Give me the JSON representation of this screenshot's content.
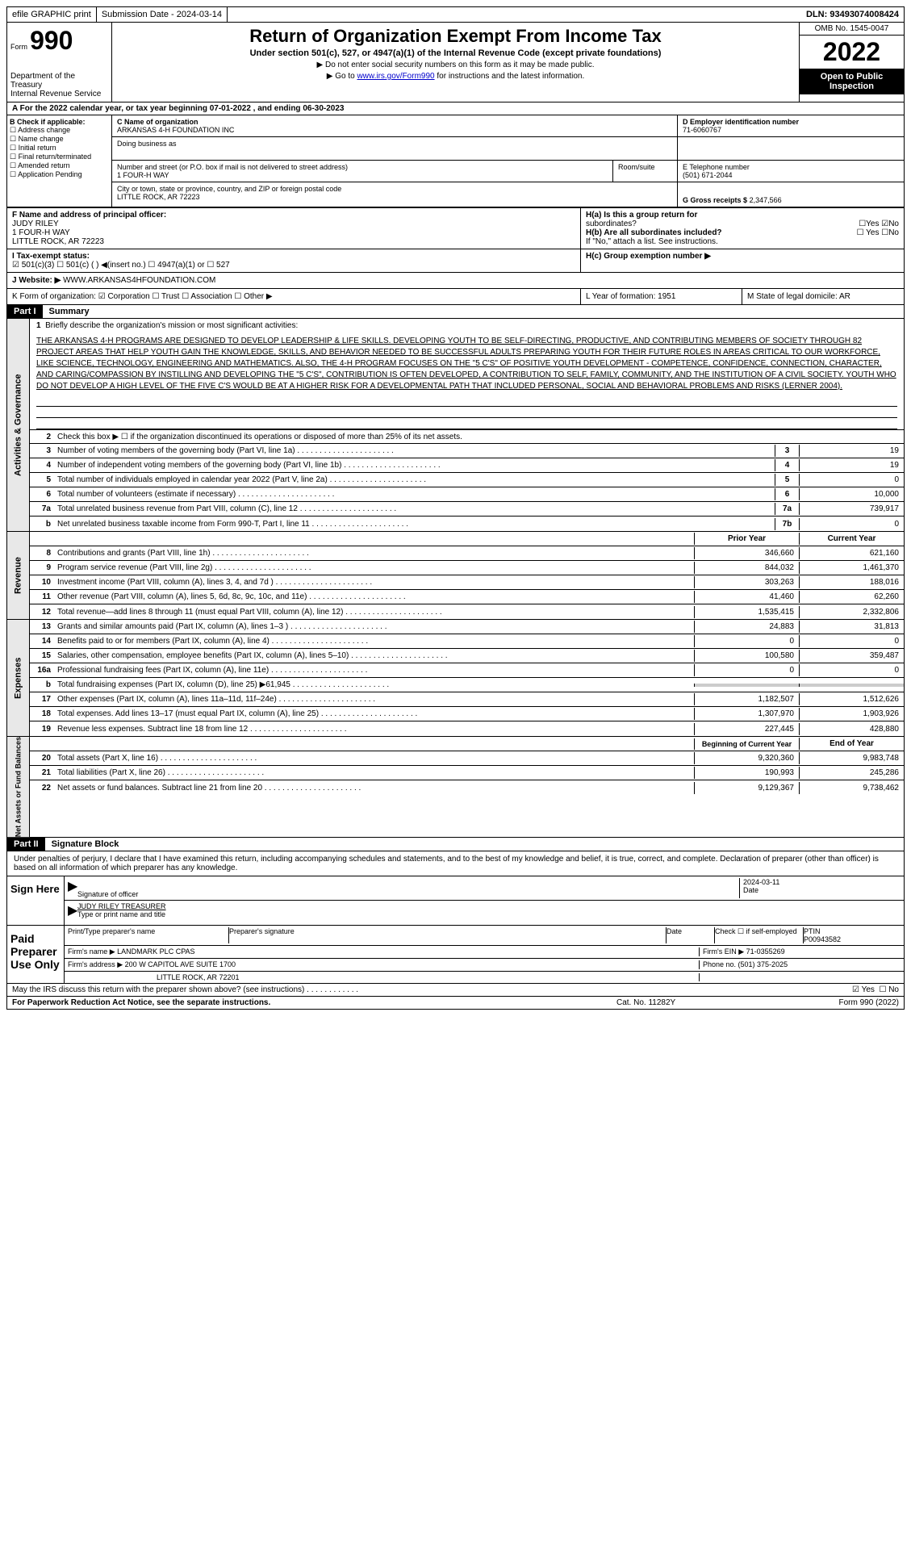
{
  "topbar": {
    "efile": "efile GRAPHIC print",
    "submission": "Submission Date - 2024-03-14",
    "dln": "DLN: 93493074008424"
  },
  "header": {
    "form": "Form",
    "num": "990",
    "dept": "Department of the Treasury",
    "irs": "Internal Revenue Service",
    "title": "Return of Organization Exempt From Income Tax",
    "subtitle": "Under section 501(c), 527, or 4947(a)(1) of the Internal Revenue Code (except private foundations)",
    "instr1": "▶ Do not enter social security numbers on this form as it may be made public.",
    "instr2_pre": "▶ Go to ",
    "instr2_link": "www.irs.gov/Form990",
    "instr2_post": " for instructions and the latest information.",
    "omb": "OMB No. 1545-0047",
    "year": "2022",
    "open": "Open to Public Inspection"
  },
  "rowA": "A For the 2022 calendar year, or tax year beginning 07-01-2022   , and ending 06-30-2023",
  "colB": {
    "header": "B Check if applicable:",
    "items": [
      "☐ Address change",
      "☐ Name change",
      "☐ Initial return",
      "☐ Final return/terminated",
      "☐ Amended return",
      "☐ Application Pending"
    ]
  },
  "boxC": {
    "label": "C Name of organization",
    "name": "ARKANSAS 4-H FOUNDATION INC",
    "dba_label": "Doing business as",
    "street_label": "Number and street (or P.O. box if mail is not delivered to street address)",
    "street": "1 FOUR-H WAY",
    "room_label": "Room/suite",
    "city_label": "City or town, state or province, country, and ZIP or foreign postal code",
    "city": "LITTLE ROCK, AR  72223"
  },
  "boxD": {
    "label": "D Employer identification number",
    "val": "71-6060767"
  },
  "boxE": {
    "label": "E Telephone number",
    "val": "(501) 671-2044"
  },
  "boxG": {
    "label": "G Gross receipts $",
    "val": "2,347,566"
  },
  "boxF": {
    "label": "F  Name and address of principal officer:",
    "name": "JUDY RILEY",
    "addr1": "1 FOUR-H WAY",
    "addr2": "LITTLE ROCK, AR  72223"
  },
  "boxH": {
    "a_label": "H(a)  Is this a group return for",
    "a_sub": "subordinates?",
    "a_yes": "☐Yes",
    "a_no": "☑No",
    "b_label": "H(b)  Are all subordinates included?",
    "b_yes": "☐ Yes",
    "b_no": "☐No",
    "b_note": "If \"No,\" attach a list. See instructions.",
    "c_label": "H(c)  Group exemption number ▶"
  },
  "rowI": {
    "label": "I   Tax-exempt status:",
    "opts": "☑ 501(c)(3)    ☐  501(c) (  ) ◀(insert no.)    ☐  4947(a)(1) or   ☐  527"
  },
  "rowJ": {
    "label": "J  Website: ▶",
    "val": " WWW.ARKANSAS4HFOUNDATION.COM"
  },
  "rowK": {
    "label": "K Form of organization:  ☑ Corporation  ☐ Trust  ☐ Association  ☐ Other ▶",
    "L": "L Year of formation: 1951",
    "M": "M State of legal domicile: AR"
  },
  "part1": {
    "hdr": "Part I",
    "title": "Summary"
  },
  "summary": {
    "line1_label": "Briefly describe the organization's mission or most significant activities:",
    "mission": "THE ARKANSAS 4-H PROGRAMS ARE DESIGNED TO DEVELOP LEADERSHIP & LIFE SKILLS. DEVELOPING YOUTH TO BE SELF-DIRECTING, PRODUCTIVE, AND CONTRIBUTING MEMBERS OF SOCIETY THROUGH 82 PROJECT AREAS THAT HELP YOUTH GAIN THE KNOWLEDGE, SKILLS, AND BEHAVIOR NEEDED TO BE SUCCESSFUL ADULTS PREPARING YOUTH FOR THEIR FUTURE ROLES IN AREAS CRITICAL TO OUR WORKFORCE, LIKE SCIENCE, TECHNOLOGY, ENGINEERING AND MATHEMATICS. ALSO, THE 4-H PROGRAM FOCUSES ON THE \"5 C'S\" OF POSITIVE YOUTH DEVELOPMENT - COMPETENCE, CONFIDENCE, CONNECTION, CHARACTER, AND CARING/COMPASSION BY INSTILLING AND DEVELOPING THE \"5 C'S\", CONTRIBUTION IS OFTEN DEVELOPED, A CONTRIBUTION TO SELF, FAMILY, COMMUNITY, AND THE INSTITUTION OF A CIVIL SOCIETY. YOUTH WHO DO NOT DEVELOP A HIGH LEVEL OF THE FIVE C'S WOULD BE AT A HIGHER RISK FOR A DEVELOPMENTAL PATH THAT INCLUDED PERSONAL, SOCIAL AND BEHAVIORAL PROBLEMS AND RISKS (LERNER 2004).",
    "line2": "Check this box ▶ ☐ if the organization discontinued its operations or disposed of more than 25% of its net assets.",
    "rows": [
      {
        "n": "3",
        "label": "Number of voting members of the governing body (Part VI, line 1a)",
        "box": "3",
        "val": "19"
      },
      {
        "n": "4",
        "label": "Number of independent voting members of the governing body (Part VI, line 1b)",
        "box": "4",
        "val": "19"
      },
      {
        "n": "5",
        "label": "Total number of individuals employed in calendar year 2022 (Part V, line 2a)",
        "box": "5",
        "val": "0"
      },
      {
        "n": "6",
        "label": "Total number of volunteers (estimate if necessary)",
        "box": "6",
        "val": "10,000"
      },
      {
        "n": "7a",
        "label": "Total unrelated business revenue from Part VIII, column (C), line 12",
        "box": "7a",
        "val": "739,917"
      },
      {
        "n": "b",
        "label": "Net unrelated business taxable income from Form 990-T, Part I, line 11",
        "box": "7b",
        "val": "0"
      }
    ],
    "hdr_prior": "Prior Year",
    "hdr_curr": "Current Year",
    "rev": [
      {
        "n": "8",
        "label": "Contributions and grants (Part VIII, line 1h)",
        "p": "346,660",
        "c": "621,160"
      },
      {
        "n": "9",
        "label": "Program service revenue (Part VIII, line 2g)",
        "p": "844,032",
        "c": "1,461,370"
      },
      {
        "n": "10",
        "label": "Investment income (Part VIII, column (A), lines 3, 4, and 7d )",
        "p": "303,263",
        "c": "188,016"
      },
      {
        "n": "11",
        "label": "Other revenue (Part VIII, column (A), lines 5, 6d, 8c, 9c, 10c, and 11e)",
        "p": "41,460",
        "c": "62,260"
      },
      {
        "n": "12",
        "label": "Total revenue—add lines 8 through 11 (must equal Part VIII, column (A), line 12)",
        "p": "1,535,415",
        "c": "2,332,806"
      }
    ],
    "exp": [
      {
        "n": "13",
        "label": "Grants and similar amounts paid (Part IX, column (A), lines 1–3 )",
        "p": "24,883",
        "c": "31,813"
      },
      {
        "n": "14",
        "label": "Benefits paid to or for members (Part IX, column (A), line 4)",
        "p": "0",
        "c": "0"
      },
      {
        "n": "15",
        "label": "Salaries, other compensation, employee benefits (Part IX, column (A), lines 5–10)",
        "p": "100,580",
        "c": "359,487"
      },
      {
        "n": "16a",
        "label": "Professional fundraising fees (Part IX, column (A), line 11e)",
        "p": "0",
        "c": "0"
      },
      {
        "n": "b",
        "label": "Total fundraising expenses (Part IX, column (D), line 25) ▶61,945",
        "p": "",
        "c": "",
        "shaded": true
      },
      {
        "n": "17",
        "label": "Other expenses (Part IX, column (A), lines 11a–11d, 11f–24e)",
        "p": "1,182,507",
        "c": "1,512,626"
      },
      {
        "n": "18",
        "label": "Total expenses. Add lines 13–17 (must equal Part IX, column (A), line 25)",
        "p": "1,307,970",
        "c": "1,903,926"
      },
      {
        "n": "19",
        "label": "Revenue less expenses. Subtract line 18 from line 12",
        "p": "227,445",
        "c": "428,880"
      }
    ],
    "hdr_begin": "Beginning of Current Year",
    "hdr_end": "End of Year",
    "net": [
      {
        "n": "20",
        "label": "Total assets (Part X, line 16)",
        "p": "9,320,360",
        "c": "9,983,748"
      },
      {
        "n": "21",
        "label": "Total liabilities (Part X, line 26)",
        "p": "190,993",
        "c": "245,286"
      },
      {
        "n": "22",
        "label": "Net assets or fund balances. Subtract line 21 from line 20",
        "p": "9,129,367",
        "c": "9,738,462"
      }
    ]
  },
  "sides": {
    "activities": "Activities & Governance",
    "revenue": "Revenue",
    "expenses": "Expenses",
    "net": "Net Assets or Fund Balances"
  },
  "part2": {
    "hdr": "Part II",
    "title": "Signature Block"
  },
  "perjury": "Under penalties of perjury, I declare that I have examined this return, including accompanying schedules and statements, and to the best of my knowledge and belief, it is true, correct, and complete. Declaration of preparer (other than officer) is based on all information of which preparer has any knowledge.",
  "sign": {
    "left": "Sign Here",
    "sig_label": "Signature of officer",
    "date_label": "Date",
    "date": "2024-03-11",
    "name": "JUDY RILEY  TREASURER",
    "name_label": "Type or print name and title"
  },
  "paid": {
    "left": "Paid Preparer Use Only",
    "r1_c1": "Print/Type preparer's name",
    "r1_c2": "Preparer's signature",
    "r1_c3": "Date",
    "r1_c4": "Check ☐ if self-employed",
    "r1_c5_label": "PTIN",
    "r1_c5": "P00943582",
    "r2_label": "Firm's name    ▶",
    "r2_val": "LANDMARK PLC CPAS",
    "r2_ein": "Firm's EIN ▶ 71-0355269",
    "r3_label": "Firm's address ▶",
    "r3_val": "200 W CAPITOL AVE SUITE 1700",
    "r3_city": "LITTLE ROCK, AR  72201",
    "r3_phone": "Phone no. (501) 375-2025"
  },
  "footer": {
    "discuss": "May the IRS discuss this return with the preparer shown above? (see instructions)",
    "yes": "☑ Yes",
    "no": "☐ No",
    "paperwork": "For Paperwork Reduction Act Notice, see the separate instructions.",
    "cat": "Cat. No. 11282Y",
    "form": "Form 990 (2022)"
  }
}
